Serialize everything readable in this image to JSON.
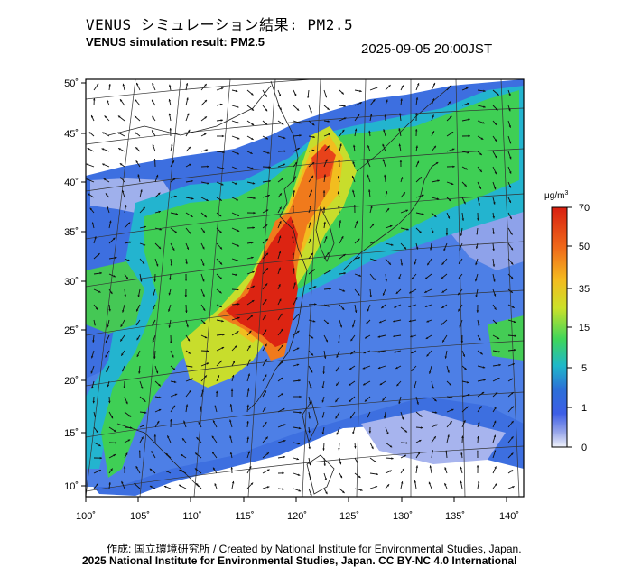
{
  "header": {
    "title_jp": "VENUS シミュレーション結果: PM2.5",
    "title_en": "VENUS simulation result: PM2.5",
    "datetime": "2025-09-05 20:00JST"
  },
  "map": {
    "lat_ticks": [
      "50˚",
      "45˚",
      "40˚",
      "35˚",
      "30˚",
      "25˚",
      "20˚",
      "15˚",
      "10˚"
    ],
    "lon_ticks": [
      "100˚",
      "105˚",
      "110˚",
      "115˚",
      "120˚",
      "125˚",
      "130˚",
      "135˚",
      "140˚"
    ]
  },
  "colorbar": {
    "unit_base": "μg/m",
    "unit_sup": "3",
    "labels": [
      "70",
      "50",
      "35",
      "15",
      "5",
      "1",
      "0"
    ],
    "colors": [
      "#d81f10",
      "#f06a1a",
      "#f4ba1f",
      "#cbe12a",
      "#3fd65a",
      "#1fb8c9",
      "#2c6fd8",
      "#3d5ee6",
      "#9aa8ea",
      "#f0f2fa"
    ]
  },
  "footer": {
    "credit_line1": "作成: 国立環境研究所 / Created by National Institute for Environmental Studies, Japan.",
    "credit_line2": "2025 National Institute for Environmental Studies, Japan. CC BY-NC 4.0 International"
  }
}
